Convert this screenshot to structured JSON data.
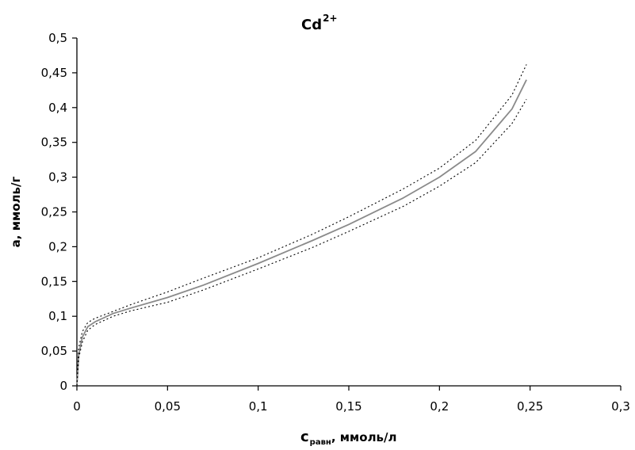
{
  "chart_data": {
    "type": "line",
    "title": {
      "main": "Cd",
      "superscript": "2+"
    },
    "xlabel": {
      "main": "c",
      "subscript": "равн",
      "rest": ", ммоль/л"
    },
    "ylabel": "a, ммоль/г",
    "xlim": [
      0,
      0.3
    ],
    "ylim": [
      0,
      0.5
    ],
    "x_ticks": [
      "0",
      "0,05",
      "0,1",
      "0,15",
      "0,2",
      "0,25",
      "0,3"
    ],
    "y_ticks": [
      "0",
      "0,05",
      "0,1",
      "0,15",
      "0,2",
      "0,25",
      "0,3",
      "0,35",
      "0,4",
      "0,45",
      "0,5"
    ],
    "grid": false,
    "legend": "none",
    "colors": {
      "fit": "#8a8a8a",
      "bounds": "#000000",
      "axes": "#000000"
    },
    "series": [
      {
        "style": "solid",
        "x": [
          0,
          0.001,
          0.003,
          0.006,
          0.01,
          0.02,
          0.03,
          0.05,
          0.07,
          0.1,
          0.13,
          0.15,
          0.18,
          0.2,
          0.22,
          0.24,
          0.248
        ],
        "y": [
          0,
          0.045,
          0.07,
          0.085,
          0.092,
          0.104,
          0.112,
          0.127,
          0.145,
          0.176,
          0.209,
          0.232,
          0.27,
          0.3,
          0.337,
          0.398,
          0.44
        ]
      },
      {
        "style": "dotted",
        "x": [
          0,
          0.001,
          0.003,
          0.006,
          0.01,
          0.02,
          0.03,
          0.05,
          0.07,
          0.1,
          0.13,
          0.15,
          0.18,
          0.2,
          0.22,
          0.24,
          0.248
        ],
        "y": [
          0,
          0.055,
          0.078,
          0.091,
          0.097,
          0.107,
          0.117,
          0.135,
          0.155,
          0.184,
          0.218,
          0.243,
          0.283,
          0.313,
          0.353,
          0.418,
          0.462
        ]
      },
      {
        "style": "dotted",
        "x": [
          0,
          0.001,
          0.003,
          0.006,
          0.01,
          0.02,
          0.03,
          0.05,
          0.07,
          0.1,
          0.13,
          0.15,
          0.18,
          0.2,
          0.22,
          0.24,
          0.248
        ],
        "y": [
          0,
          0.04,
          0.063,
          0.08,
          0.088,
          0.1,
          0.108,
          0.12,
          0.138,
          0.168,
          0.199,
          0.222,
          0.258,
          0.287,
          0.321,
          0.377,
          0.412
        ]
      }
    ]
  }
}
